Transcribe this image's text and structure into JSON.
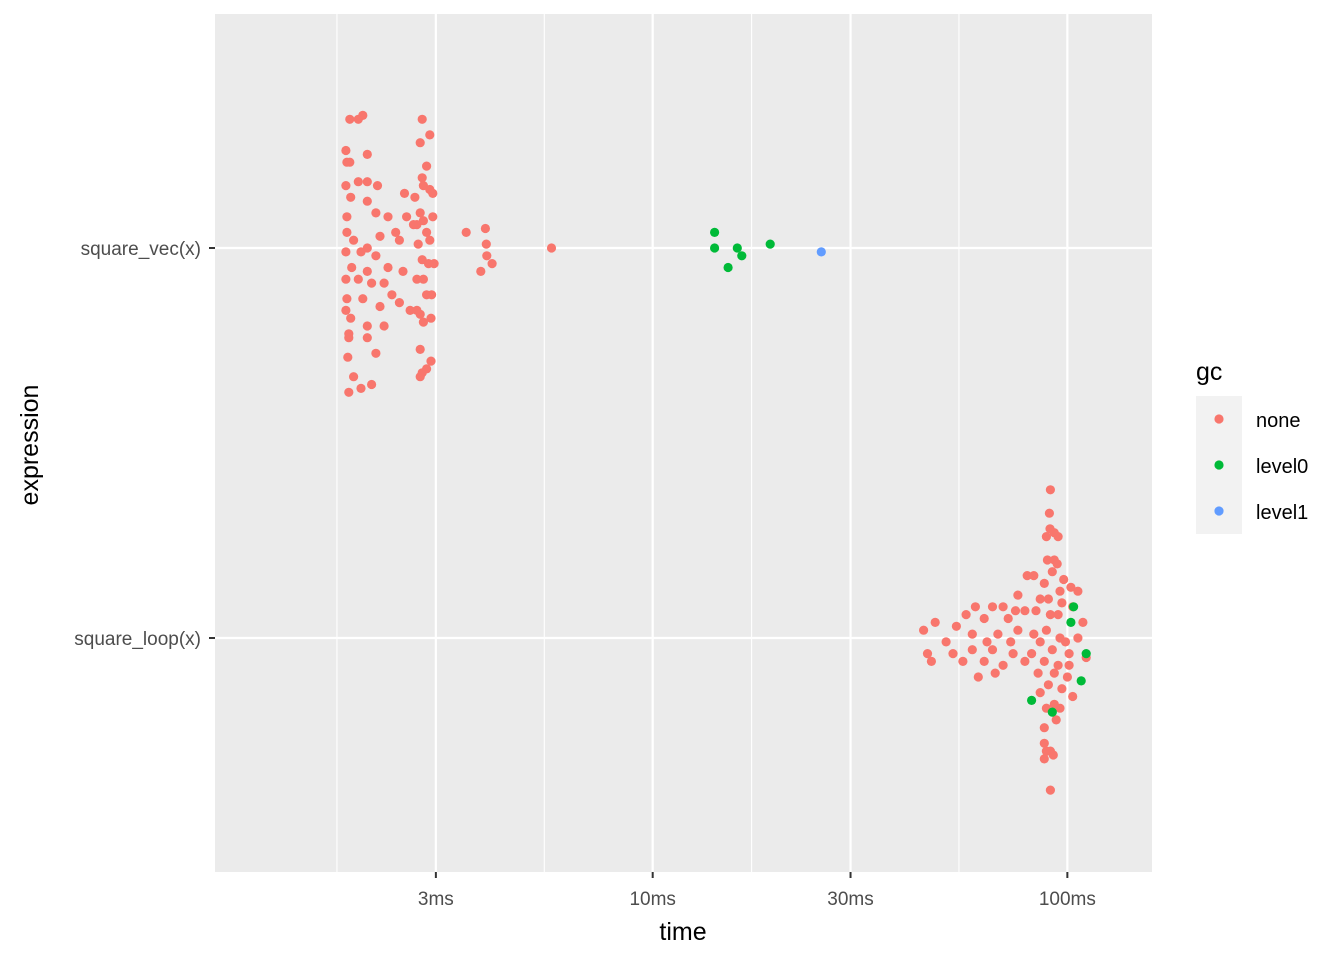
{
  "chart_data": {
    "type": "scatter",
    "xlabel": "time",
    "ylabel": "expression",
    "x_scale": "log10",
    "xlim_ms": [
      0.88,
      160
    ],
    "x_ticks": [
      {
        "value": 3,
        "label": "3ms"
      },
      {
        "value": 10,
        "label": "10ms"
      },
      {
        "value": 30,
        "label": "30ms"
      },
      {
        "value": 100,
        "label": "100ms"
      }
    ],
    "x_minor_ticks": [
      1.732,
      5.477,
      17.32,
      54.77
    ],
    "categories": [
      "square_vec(x)",
      "square_loop(x)"
    ],
    "grid": true,
    "legend": {
      "title": "gc",
      "position": "right",
      "items": [
        {
          "label": "none",
          "color": "#F8766D"
        },
        {
          "label": "level0",
          "color": "#00BA38"
        },
        {
          "label": "level1",
          "color": "#619CFF"
        }
      ]
    },
    "points": [
      {
        "e": 0,
        "t": 1.86,
        "o": 0.33,
        "gc": "none"
      },
      {
        "e": 0,
        "t": 1.95,
        "o": 0.33,
        "gc": "none"
      },
      {
        "e": 0,
        "t": 2.0,
        "o": 0.34,
        "gc": "none"
      },
      {
        "e": 0,
        "t": 1.82,
        "o": 0.25,
        "gc": "none"
      },
      {
        "e": 0,
        "t": 2.05,
        "o": 0.24,
        "gc": "none"
      },
      {
        "e": 0,
        "t": 1.83,
        "o": 0.22,
        "gc": "none"
      },
      {
        "e": 0,
        "t": 1.86,
        "o": 0.22,
        "gc": "none"
      },
      {
        "e": 0,
        "t": 1.82,
        "o": 0.16,
        "gc": "none"
      },
      {
        "e": 0,
        "t": 1.95,
        "o": 0.17,
        "gc": "none"
      },
      {
        "e": 0,
        "t": 2.05,
        "o": 0.17,
        "gc": "none"
      },
      {
        "e": 0,
        "t": 2.17,
        "o": 0.16,
        "gc": "none"
      },
      {
        "e": 0,
        "t": 1.87,
        "o": 0.13,
        "gc": "none"
      },
      {
        "e": 0,
        "t": 2.05,
        "o": 0.12,
        "gc": "none"
      },
      {
        "e": 0,
        "t": 2.15,
        "o": 0.09,
        "gc": "none"
      },
      {
        "e": 0,
        "t": 2.3,
        "o": 0.08,
        "gc": "none"
      },
      {
        "e": 0,
        "t": 1.83,
        "o": 0.08,
        "gc": "none"
      },
      {
        "e": 0,
        "t": 1.83,
        "o": 0.04,
        "gc": "none"
      },
      {
        "e": 0,
        "t": 1.9,
        "o": 0.02,
        "gc": "none"
      },
      {
        "e": 0,
        "t": 2.05,
        "o": 0.0,
        "gc": "none"
      },
      {
        "e": 0,
        "t": 2.2,
        "o": 0.03,
        "gc": "none"
      },
      {
        "e": 0,
        "t": 2.4,
        "o": 0.04,
        "gc": "none"
      },
      {
        "e": 0,
        "t": 2.55,
        "o": 0.08,
        "gc": "none"
      },
      {
        "e": 0,
        "t": 2.7,
        "o": 0.06,
        "gc": "none"
      },
      {
        "e": 0,
        "t": 1.82,
        "o": -0.01,
        "gc": "none"
      },
      {
        "e": 0,
        "t": 1.98,
        "o": -0.01,
        "gc": "none"
      },
      {
        "e": 0,
        "t": 2.15,
        "o": -0.02,
        "gc": "none"
      },
      {
        "e": 0,
        "t": 2.45,
        "o": 0.02,
        "gc": "none"
      },
      {
        "e": 0,
        "t": 1.88,
        "o": -0.05,
        "gc": "none"
      },
      {
        "e": 0,
        "t": 2.05,
        "o": -0.06,
        "gc": "none"
      },
      {
        "e": 0,
        "t": 2.3,
        "o": -0.05,
        "gc": "none"
      },
      {
        "e": 0,
        "t": 2.5,
        "o": -0.06,
        "gc": "none"
      },
      {
        "e": 0,
        "t": 1.82,
        "o": -0.08,
        "gc": "none"
      },
      {
        "e": 0,
        "t": 1.95,
        "o": -0.08,
        "gc": "none"
      },
      {
        "e": 0,
        "t": 2.1,
        "o": -0.09,
        "gc": "none"
      },
      {
        "e": 0,
        "t": 2.25,
        "o": -0.09,
        "gc": "none"
      },
      {
        "e": 0,
        "t": 2.35,
        "o": -0.12,
        "gc": "none"
      },
      {
        "e": 0,
        "t": 1.83,
        "o": -0.13,
        "gc": "none"
      },
      {
        "e": 0,
        "t": 2.0,
        "o": -0.13,
        "gc": "none"
      },
      {
        "e": 0,
        "t": 2.2,
        "o": -0.15,
        "gc": "none"
      },
      {
        "e": 0,
        "t": 2.45,
        "o": -0.14,
        "gc": "none"
      },
      {
        "e": 0,
        "t": 1.82,
        "o": -0.16,
        "gc": "none"
      },
      {
        "e": 0,
        "t": 1.87,
        "o": -0.18,
        "gc": "none"
      },
      {
        "e": 0,
        "t": 2.05,
        "o": -0.2,
        "gc": "none"
      },
      {
        "e": 0,
        "t": 2.25,
        "o": -0.2,
        "gc": "none"
      },
      {
        "e": 0,
        "t": 1.85,
        "o": -0.22,
        "gc": "none"
      },
      {
        "e": 0,
        "t": 1.85,
        "o": -0.23,
        "gc": "none"
      },
      {
        "e": 0,
        "t": 2.05,
        "o": -0.23,
        "gc": "none"
      },
      {
        "e": 0,
        "t": 1.84,
        "o": -0.28,
        "gc": "none"
      },
      {
        "e": 0,
        "t": 2.15,
        "o": -0.27,
        "gc": "none"
      },
      {
        "e": 0,
        "t": 1.9,
        "o": -0.33,
        "gc": "none"
      },
      {
        "e": 0,
        "t": 1.98,
        "o": -0.36,
        "gc": "none"
      },
      {
        "e": 0,
        "t": 2.1,
        "o": -0.35,
        "gc": "none"
      },
      {
        "e": 0,
        "t": 1.85,
        "o": -0.37,
        "gc": "none"
      },
      {
        "e": 0,
        "t": 2.78,
        "o": 0.33,
        "gc": "none"
      },
      {
        "e": 0,
        "t": 2.9,
        "o": 0.29,
        "gc": "none"
      },
      {
        "e": 0,
        "t": 2.75,
        "o": 0.27,
        "gc": "none"
      },
      {
        "e": 0,
        "t": 2.85,
        "o": 0.21,
        "gc": "none"
      },
      {
        "e": 0,
        "t": 2.9,
        "o": 0.15,
        "gc": "none"
      },
      {
        "e": 0,
        "t": 2.78,
        "o": 0.18,
        "gc": "none"
      },
      {
        "e": 0,
        "t": 2.8,
        "o": 0.16,
        "gc": "none"
      },
      {
        "e": 0,
        "t": 2.52,
        "o": 0.14,
        "gc": "none"
      },
      {
        "e": 0,
        "t": 2.67,
        "o": 0.13,
        "gc": "none"
      },
      {
        "e": 0,
        "t": 2.95,
        "o": 0.14,
        "gc": "none"
      },
      {
        "e": 0,
        "t": 2.75,
        "o": 0.09,
        "gc": "none"
      },
      {
        "e": 0,
        "t": 2.95,
        "o": 0.08,
        "gc": "none"
      },
      {
        "e": 0,
        "t": 2.8,
        "o": 0.07,
        "gc": "none"
      },
      {
        "e": 0,
        "t": 2.65,
        "o": 0.06,
        "gc": "none"
      },
      {
        "e": 0,
        "t": 2.85,
        "o": 0.04,
        "gc": "none"
      },
      {
        "e": 0,
        "t": 2.72,
        "o": 0.01,
        "gc": "none"
      },
      {
        "e": 0,
        "t": 2.9,
        "o": 0.02,
        "gc": "none"
      },
      {
        "e": 0,
        "t": 2.78,
        "o": -0.03,
        "gc": "none"
      },
      {
        "e": 0,
        "t": 2.88,
        "o": -0.04,
        "gc": "none"
      },
      {
        "e": 0,
        "t": 2.97,
        "o": -0.04,
        "gc": "none"
      },
      {
        "e": 0,
        "t": 2.7,
        "o": -0.08,
        "gc": "none"
      },
      {
        "e": 0,
        "t": 2.8,
        "o": -0.08,
        "gc": "none"
      },
      {
        "e": 0,
        "t": 2.85,
        "o": -0.12,
        "gc": "none"
      },
      {
        "e": 0,
        "t": 2.93,
        "o": -0.12,
        "gc": "none"
      },
      {
        "e": 0,
        "t": 2.6,
        "o": -0.16,
        "gc": "none"
      },
      {
        "e": 0,
        "t": 2.7,
        "o": -0.16,
        "gc": "none"
      },
      {
        "e": 0,
        "t": 2.75,
        "o": -0.17,
        "gc": "none"
      },
      {
        "e": 0,
        "t": 2.8,
        "o": -0.19,
        "gc": "none"
      },
      {
        "e": 0,
        "t": 2.92,
        "o": -0.18,
        "gc": "none"
      },
      {
        "e": 0,
        "t": 2.75,
        "o": -0.26,
        "gc": "none"
      },
      {
        "e": 0,
        "t": 2.92,
        "o": -0.29,
        "gc": "none"
      },
      {
        "e": 0,
        "t": 2.75,
        "o": -0.33,
        "gc": "none"
      },
      {
        "e": 0,
        "t": 2.78,
        "o": -0.32,
        "gc": "none"
      },
      {
        "e": 0,
        "t": 2.85,
        "o": -0.31,
        "gc": "none"
      },
      {
        "e": 0,
        "t": 3.55,
        "o": 0.04,
        "gc": "none"
      },
      {
        "e": 0,
        "t": 3.95,
        "o": 0.05,
        "gc": "none"
      },
      {
        "e": 0,
        "t": 3.97,
        "o": 0.01,
        "gc": "none"
      },
      {
        "e": 0,
        "t": 3.85,
        "o": -0.06,
        "gc": "none"
      },
      {
        "e": 0,
        "t": 3.98,
        "o": -0.02,
        "gc": "none"
      },
      {
        "e": 0,
        "t": 4.1,
        "o": -0.04,
        "gc": "none"
      },
      {
        "e": 0,
        "t": 5.7,
        "o": 0.0,
        "gc": "none"
      },
      {
        "e": 0,
        "t": 14.1,
        "o": 0.04,
        "gc": "level0"
      },
      {
        "e": 0,
        "t": 14.1,
        "o": 0.0,
        "gc": "level0"
      },
      {
        "e": 0,
        "t": 15.2,
        "o": -0.05,
        "gc": "level0"
      },
      {
        "e": 0,
        "t": 16.0,
        "o": 0.0,
        "gc": "level0"
      },
      {
        "e": 0,
        "t": 16.4,
        "o": -0.02,
        "gc": "level0"
      },
      {
        "e": 0,
        "t": 19.2,
        "o": 0.01,
        "gc": "level0"
      },
      {
        "e": 0,
        "t": 25.5,
        "o": -0.01,
        "gc": "level1"
      },
      {
        "e": 1,
        "t": 91,
        "o": 0.38,
        "gc": "none"
      },
      {
        "e": 1,
        "t": 90.5,
        "o": 0.32,
        "gc": "none"
      },
      {
        "e": 1,
        "t": 90.8,
        "o": 0.28,
        "gc": "none"
      },
      {
        "e": 1,
        "t": 89,
        "o": 0.26,
        "gc": "none"
      },
      {
        "e": 1,
        "t": 93,
        "o": 0.27,
        "gc": "none"
      },
      {
        "e": 1,
        "t": 95,
        "o": 0.26,
        "gc": "none"
      },
      {
        "e": 1,
        "t": 93,
        "o": 0.2,
        "gc": "none"
      },
      {
        "e": 1,
        "t": 89.5,
        "o": 0.2,
        "gc": "none"
      },
      {
        "e": 1,
        "t": 94.5,
        "o": 0.19,
        "gc": "none"
      },
      {
        "e": 1,
        "t": 92,
        "o": 0.17,
        "gc": "none"
      },
      {
        "e": 1,
        "t": 80,
        "o": 0.16,
        "gc": "none"
      },
      {
        "e": 1,
        "t": 83,
        "o": 0.16,
        "gc": "none"
      },
      {
        "e": 1,
        "t": 98,
        "o": 0.15,
        "gc": "none"
      },
      {
        "e": 1,
        "t": 102,
        "o": 0.13,
        "gc": "none"
      },
      {
        "e": 1,
        "t": 88,
        "o": 0.14,
        "gc": "none"
      },
      {
        "e": 1,
        "t": 106,
        "o": 0.12,
        "gc": "none"
      },
      {
        "e": 1,
        "t": 96,
        "o": 0.12,
        "gc": "none"
      },
      {
        "e": 1,
        "t": 90,
        "o": 0.1,
        "gc": "none"
      },
      {
        "e": 1,
        "t": 86,
        "o": 0.1,
        "gc": "none"
      },
      {
        "e": 1,
        "t": 76,
        "o": 0.11,
        "gc": "none"
      },
      {
        "e": 1,
        "t": 97,
        "o": 0.09,
        "gc": "none"
      },
      {
        "e": 1,
        "t": 103,
        "o": 0.08,
        "gc": "none"
      },
      {
        "e": 1,
        "t": 70,
        "o": 0.08,
        "gc": "none"
      },
      {
        "e": 1,
        "t": 84,
        "o": 0.07,
        "gc": "none"
      },
      {
        "e": 1,
        "t": 91,
        "o": 0.06,
        "gc": "none"
      },
      {
        "e": 1,
        "t": 95,
        "o": 0.06,
        "gc": "none"
      },
      {
        "e": 1,
        "t": 60,
        "o": 0.08,
        "gc": "none"
      },
      {
        "e": 1,
        "t": 66,
        "o": 0.08,
        "gc": "none"
      },
      {
        "e": 1,
        "t": 75,
        "o": 0.07,
        "gc": "none"
      },
      {
        "e": 1,
        "t": 79,
        "o": 0.07,
        "gc": "none"
      },
      {
        "e": 1,
        "t": 57,
        "o": 0.06,
        "gc": "none"
      },
      {
        "e": 1,
        "t": 63,
        "o": 0.05,
        "gc": "none"
      },
      {
        "e": 1,
        "t": 72,
        "o": 0.05,
        "gc": "none"
      },
      {
        "e": 1,
        "t": 109,
        "o": 0.04,
        "gc": "none"
      },
      {
        "e": 1,
        "t": 48,
        "o": 0.04,
        "gc": "none"
      },
      {
        "e": 1,
        "t": 54,
        "o": 0.03,
        "gc": "none"
      },
      {
        "e": 1,
        "t": 45,
        "o": 0.02,
        "gc": "none"
      },
      {
        "e": 1,
        "t": 59,
        "o": 0.01,
        "gc": "none"
      },
      {
        "e": 1,
        "t": 68,
        "o": 0.01,
        "gc": "none"
      },
      {
        "e": 1,
        "t": 76,
        "o": 0.02,
        "gc": "none"
      },
      {
        "e": 1,
        "t": 83,
        "o": 0.01,
        "gc": "none"
      },
      {
        "e": 1,
        "t": 89,
        "o": 0.02,
        "gc": "none"
      },
      {
        "e": 1,
        "t": 96,
        "o": 0.0,
        "gc": "none"
      },
      {
        "e": 1,
        "t": 106,
        "o": 0.0,
        "gc": "none"
      },
      {
        "e": 1,
        "t": 51,
        "o": -0.01,
        "gc": "none"
      },
      {
        "e": 1,
        "t": 64,
        "o": -0.01,
        "gc": "none"
      },
      {
        "e": 1,
        "t": 73,
        "o": -0.01,
        "gc": "none"
      },
      {
        "e": 1,
        "t": 86,
        "o": -0.01,
        "gc": "none"
      },
      {
        "e": 1,
        "t": 99,
        "o": -0.01,
        "gc": "none"
      },
      {
        "e": 1,
        "t": 46,
        "o": -0.04,
        "gc": "none"
      },
      {
        "e": 1,
        "t": 53,
        "o": -0.04,
        "gc": "none"
      },
      {
        "e": 1,
        "t": 59,
        "o": -0.03,
        "gc": "none"
      },
      {
        "e": 1,
        "t": 66,
        "o": -0.03,
        "gc": "none"
      },
      {
        "e": 1,
        "t": 74,
        "o": -0.04,
        "gc": "none"
      },
      {
        "e": 1,
        "t": 82,
        "o": -0.04,
        "gc": "none"
      },
      {
        "e": 1,
        "t": 92,
        "o": -0.03,
        "gc": "none"
      },
      {
        "e": 1,
        "t": 101,
        "o": -0.04,
        "gc": "none"
      },
      {
        "e": 1,
        "t": 111,
        "o": -0.05,
        "gc": "none"
      },
      {
        "e": 1,
        "t": 47,
        "o": -0.06,
        "gc": "none"
      },
      {
        "e": 1,
        "t": 56,
        "o": -0.06,
        "gc": "none"
      },
      {
        "e": 1,
        "t": 63,
        "o": -0.06,
        "gc": "none"
      },
      {
        "e": 1,
        "t": 70,
        "o": -0.07,
        "gc": "none"
      },
      {
        "e": 1,
        "t": 79,
        "o": -0.06,
        "gc": "none"
      },
      {
        "e": 1,
        "t": 88,
        "o": -0.06,
        "gc": "none"
      },
      {
        "e": 1,
        "t": 95,
        "o": -0.07,
        "gc": "none"
      },
      {
        "e": 1,
        "t": 101,
        "o": -0.07,
        "gc": "none"
      },
      {
        "e": 1,
        "t": 67,
        "o": -0.09,
        "gc": "none"
      },
      {
        "e": 1,
        "t": 85,
        "o": -0.09,
        "gc": "none"
      },
      {
        "e": 1,
        "t": 93,
        "o": -0.09,
        "gc": "none"
      },
      {
        "e": 1,
        "t": 61,
        "o": -0.1,
        "gc": "none"
      },
      {
        "e": 1,
        "t": 100,
        "o": -0.1,
        "gc": "none"
      },
      {
        "e": 1,
        "t": 90,
        "o": -0.12,
        "gc": "none"
      },
      {
        "e": 1,
        "t": 97,
        "o": -0.13,
        "gc": "none"
      },
      {
        "e": 1,
        "t": 86,
        "o": -0.14,
        "gc": "none"
      },
      {
        "e": 1,
        "t": 103,
        "o": -0.15,
        "gc": "none"
      },
      {
        "e": 1,
        "t": 93,
        "o": -0.17,
        "gc": "none"
      },
      {
        "e": 1,
        "t": 96,
        "o": -0.18,
        "gc": "none"
      },
      {
        "e": 1,
        "t": 89,
        "o": -0.18,
        "gc": "none"
      },
      {
        "e": 1,
        "t": 94,
        "o": -0.21,
        "gc": "none"
      },
      {
        "e": 1,
        "t": 88,
        "o": -0.23,
        "gc": "none"
      },
      {
        "e": 1,
        "t": 88,
        "o": -0.27,
        "gc": "none"
      },
      {
        "e": 1,
        "t": 91,
        "o": -0.29,
        "gc": "none"
      },
      {
        "e": 1,
        "t": 89,
        "o": -0.29,
        "gc": "none"
      },
      {
        "e": 1,
        "t": 92.5,
        "o": -0.3,
        "gc": "none"
      },
      {
        "e": 1,
        "t": 88,
        "o": -0.31,
        "gc": "none"
      },
      {
        "e": 1,
        "t": 91,
        "o": -0.39,
        "gc": "none"
      },
      {
        "e": 1,
        "t": 103.5,
        "o": 0.08,
        "gc": "level0"
      },
      {
        "e": 1,
        "t": 102,
        "o": 0.04,
        "gc": "level0"
      },
      {
        "e": 1,
        "t": 111,
        "o": -0.04,
        "gc": "level0"
      },
      {
        "e": 1,
        "t": 108,
        "o": -0.11,
        "gc": "level0"
      },
      {
        "e": 1,
        "t": 82,
        "o": -0.16,
        "gc": "level0"
      },
      {
        "e": 1,
        "t": 92,
        "o": -0.19,
        "gc": "level0"
      }
    ]
  }
}
